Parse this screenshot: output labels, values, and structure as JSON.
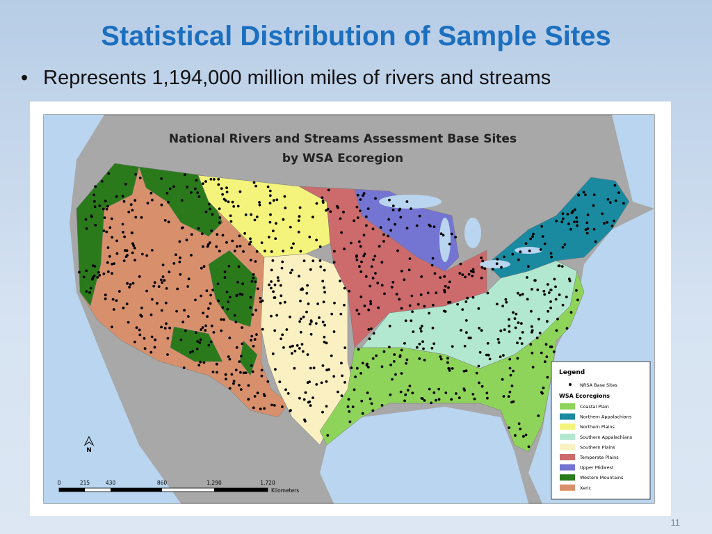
{
  "slide": {
    "title": "Statistical Distribution of Sample Sites",
    "bullet": "Represents 1,194,000 million miles of rivers and streams",
    "page_number": "11"
  },
  "map": {
    "title_lines": [
      "National Rivers and Streams Assessment Base Sites",
      "by WSA Ecoregion"
    ],
    "legend": {
      "title": "Legend",
      "site_label": "NRSA Base Sites",
      "section": "WSA Ecoregions",
      "items": [
        {
          "label": "Coastal Plain",
          "color": "#8fd45a"
        },
        {
          "label": "Northern Appalachians",
          "color": "#1a8aa0"
        },
        {
          "label": "Northern Plains",
          "color": "#f4f47c"
        },
        {
          "label": "Southern Appalachians",
          "color": "#b2e8cf"
        },
        {
          "label": "Southern Plains",
          "color": "#fbf0c2"
        },
        {
          "label": "Temperate Plains",
          "color": "#cc6a6c"
        },
        {
          "label": "Upper Midwest",
          "color": "#7474d2"
        },
        {
          "label": "Western Mountains",
          "color": "#2a7a1c"
        },
        {
          "label": "Xeric",
          "color": "#d8906c"
        }
      ]
    },
    "north": "N",
    "scale": {
      "labels": [
        "0",
        "215",
        "430",
        "860",
        "1,290",
        "1,720"
      ],
      "unit": "Kilometers"
    }
  }
}
